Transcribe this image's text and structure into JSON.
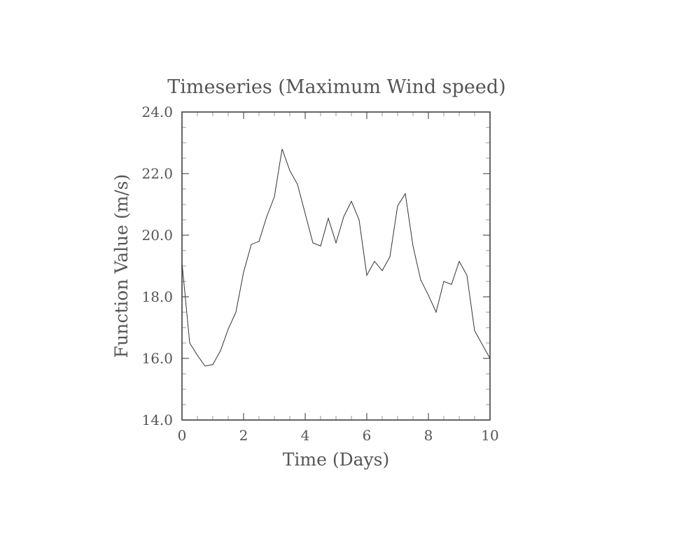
{
  "chart_data": {
    "type": "line",
    "title": "Timeseries (Maximum Wind speed)",
    "xlabel": "Time (Days)",
    "ylabel": "Function Value (m/s)",
    "xlim": [
      0,
      10
    ],
    "ylim": [
      14.0,
      24.0
    ],
    "xticks": [
      0,
      2,
      4,
      6,
      8,
      10
    ],
    "yticks": [
      "14.0",
      "16.0",
      "18.0",
      "20.0",
      "22.0",
      "24.0"
    ],
    "grid": false,
    "series": [
      {
        "x": [
          0,
          0.25,
          0.5,
          0.75,
          1.0,
          1.25,
          1.5,
          1.75,
          2.0,
          2.25,
          2.5,
          2.75,
          3.0,
          3.25,
          3.5,
          3.75,
          4.0,
          4.25,
          4.5,
          4.75,
          5.0,
          5.25,
          5.5,
          5.75,
          6.0,
          6.25,
          6.5,
          6.75,
          7.0,
          7.25,
          7.5,
          7.75,
          8.0,
          8.25,
          8.5,
          8.75,
          9.0,
          9.25,
          9.5,
          9.75,
          10.0
        ],
        "values": [
          19.1,
          16.5,
          16.1,
          15.75,
          15.8,
          16.25,
          16.95,
          17.5,
          18.8,
          19.7,
          19.8,
          20.6,
          21.25,
          22.8,
          22.1,
          21.65,
          20.7,
          19.75,
          19.65,
          20.55,
          19.75,
          20.6,
          21.1,
          20.5,
          18.7,
          19.15,
          18.85,
          19.3,
          20.95,
          21.35,
          19.65,
          18.55,
          18.05,
          17.5,
          18.5,
          18.4,
          19.15,
          18.7,
          16.9,
          16.45,
          16.0
        ],
        "color": "#333333"
      }
    ]
  }
}
